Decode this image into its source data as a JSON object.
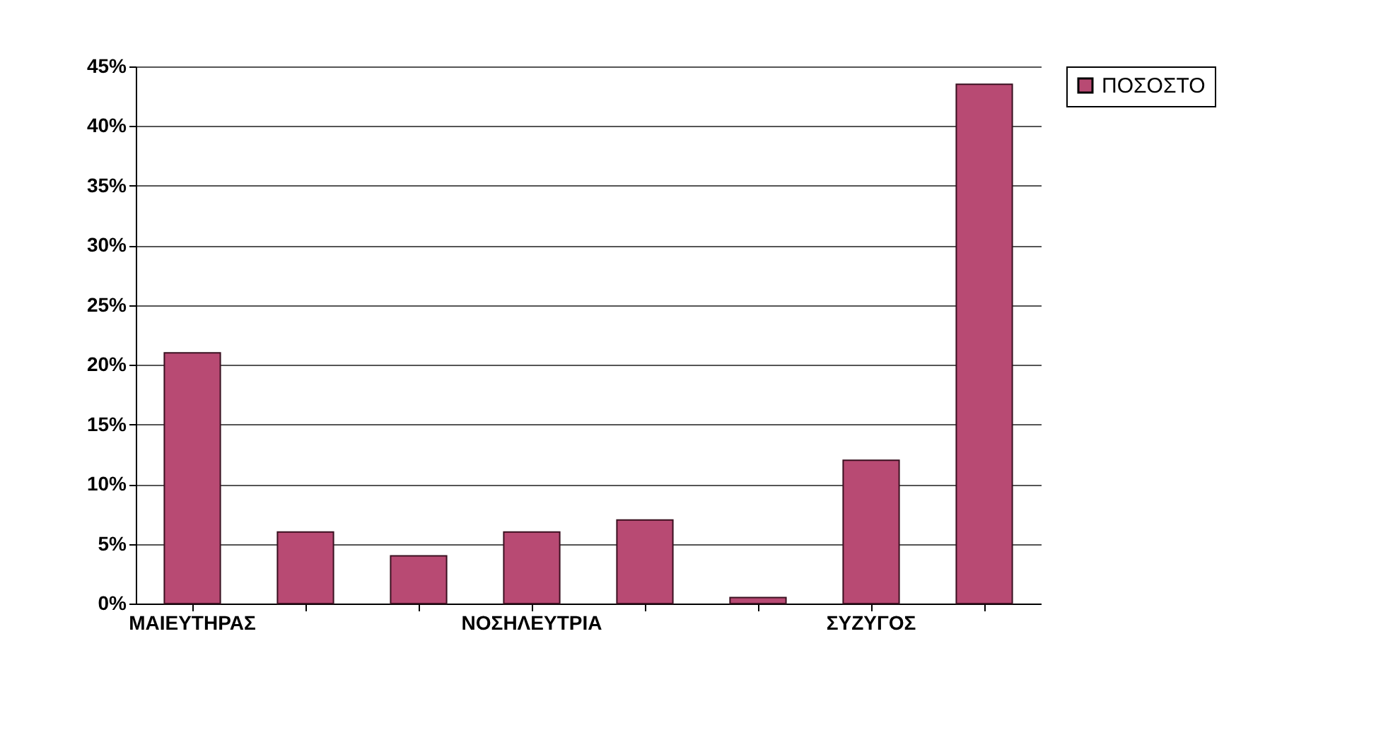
{
  "chart_data": {
    "type": "bar",
    "categories": [
      "ΜΑΙΕΥΤΗΡΑΣ",
      null,
      null,
      "ΝΟΣΗΛΕΥΤΡΙΑ",
      null,
      null,
      "ΣΥΖΥΓΟΣ",
      null
    ],
    "series": [
      {
        "name": "ΠΟΣΟΣΤΟ",
        "color": "#b84a73",
        "values": [
          21,
          6,
          4,
          6,
          7,
          0.5,
          12,
          43.5
        ]
      }
    ],
    "ylim": [
      0,
      45
    ],
    "yticks": [
      {
        "value": 0,
        "label": "0%"
      },
      {
        "value": 5,
        "label": "5%"
      },
      {
        "value": 10,
        "label": "10%"
      },
      {
        "value": 15,
        "label": "15%"
      },
      {
        "value": 20,
        "label": "20%"
      },
      {
        "value": 25,
        "label": "25%"
      },
      {
        "value": 30,
        "label": "30%"
      },
      {
        "value": 35,
        "label": "35%"
      },
      {
        "value": 40,
        "label": "40%"
      },
      {
        "value": 45,
        "label": "45%"
      }
    ],
    "grid": "y",
    "legend": "right"
  }
}
